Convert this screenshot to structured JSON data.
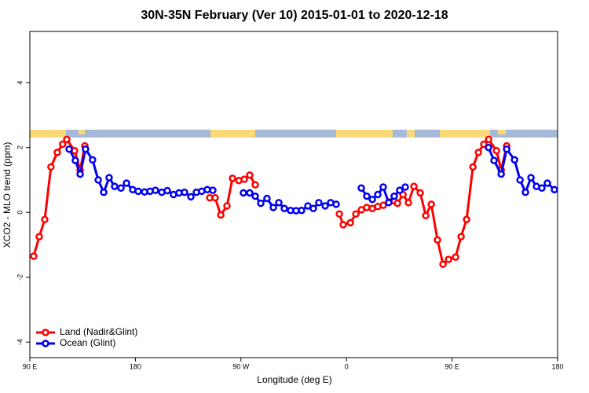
{
  "chart_data": {
    "type": "line",
    "title": "30N-35N February (Ver 10)   2015-01-01 to 2020-12-18",
    "x_label": "Longitude (deg E)",
    "y_label": "XCO2 - MLO trend (ppm)",
    "xlim": [
      90,
      540
    ],
    "xticks": [
      {
        "value": 90,
        "label": "90 E"
      },
      {
        "value": 180,
        "label": "180"
      },
      {
        "value": 270,
        "label": "90 W"
      },
      {
        "value": 360,
        "label": "0"
      },
      {
        "value": 450,
        "label": "90 E"
      },
      {
        "value": 540,
        "label": "180"
      }
    ],
    "ylim": [
      -4.48,
      5.58
    ],
    "yticks": [
      -4,
      -2,
      0,
      2,
      4
    ],
    "legend": "bottom-left",
    "series": [
      {
        "name": "Land (Nadir&Glint)",
        "color": "#ff0000",
        "x": [
          93.3,
          98,
          102.7,
          108,
          113.4,
          118,
          121.5,
          128.2,
          132.9,
          136.9,
          null,
          243.4,
          248,
          252.8,
          258.1,
          262.8,
          268.2,
          272.8,
          277.5,
          282.2,
          null,
          353.9,
          357.2,
          363.3,
          368,
          372.7,
          377.3,
          382,
          386.7,
          391.4,
          396.1,
          400.8,
          403.5,
          408.2,
          412.8,
          417.5,
          422.9,
          427.6,
          432.3,
          437.6,
          442.3,
          447,
          453,
          457.7,
          462.4,
          467.8,
          472.5,
          477.1,
          481.2,
          487.9,
          491.9,
          496.6
        ],
        "values": [
          -1.35,
          -0.75,
          -0.22,
          1.4,
          1.85,
          2.1,
          2.25,
          1.9,
          1.3,
          2.05,
          null,
          0.45,
          0.45,
          -0.08,
          0.2,
          1.05,
          0.98,
          1.02,
          1.15,
          0.85,
          null,
          -0.05,
          -0.38,
          -0.32,
          -0.05,
          0.08,
          0.15,
          0.12,
          0.18,
          0.22,
          0.32,
          0.35,
          0.28,
          0.55,
          0.3,
          0.8,
          0.6,
          -0.1,
          0.25,
          -0.85,
          -1.6,
          -1.45,
          -1.38,
          -0.75,
          -0.22,
          1.4,
          1.85,
          2.1,
          2.25,
          1.9,
          1.3,
          2.05
        ]
      },
      {
        "name": "Ocean (Glint)",
        "color": "#0000ee",
        "x": [
          123.5,
          128.8,
          132.9,
          137.5,
          143.5,
          148.3,
          153,
          157.6,
          162.3,
          167.7,
          172.4,
          177.7,
          182.4,
          187.8,
          192.5,
          197.1,
          202.5,
          207.2,
          212.5,
          217.2,
          221.9,
          227.3,
          232,
          236.6,
          241.3,
          246,
          null,
          272.1,
          277.5,
          282.2,
          286.9,
          292.2,
          297.6,
          302.3,
          307,
          312.3,
          317,
          321.7,
          327.1,
          331.7,
          336.4,
          341.8,
          346.5,
          351.2,
          null,
          372.6,
          377.3,
          382,
          386.7,
          391.3,
          396,
          400.7,
          405.4,
          410.1,
          null,
          481.1,
          485.8,
          491.9,
          496.6,
          503.3,
          508,
          512.6,
          517.3,
          522,
          526.6,
          531.3,
          537.3
        ],
        "values": [
          1.95,
          1.6,
          1.18,
          1.95,
          1.62,
          1.0,
          0.62,
          1.07,
          0.8,
          0.75,
          0.9,
          0.7,
          0.65,
          0.63,
          0.65,
          0.68,
          0.62,
          0.67,
          0.55,
          0.6,
          0.62,
          0.48,
          0.62,
          0.65,
          0.7,
          0.68,
          null,
          0.6,
          0.6,
          0.5,
          0.28,
          0.43,
          0.15,
          0.3,
          0.12,
          0.06,
          0.05,
          0.06,
          0.2,
          0.12,
          0.3,
          0.2,
          0.3,
          0.25,
          null,
          0.75,
          0.5,
          0.4,
          0.55,
          0.78,
          0.3,
          0.5,
          0.68,
          0.78,
          null,
          2.0,
          1.6,
          1.18,
          1.95,
          1.62,
          1.0,
          0.62,
          1.07,
          0.8,
          0.75,
          0.9,
          0.7
        ]
      }
    ]
  }
}
